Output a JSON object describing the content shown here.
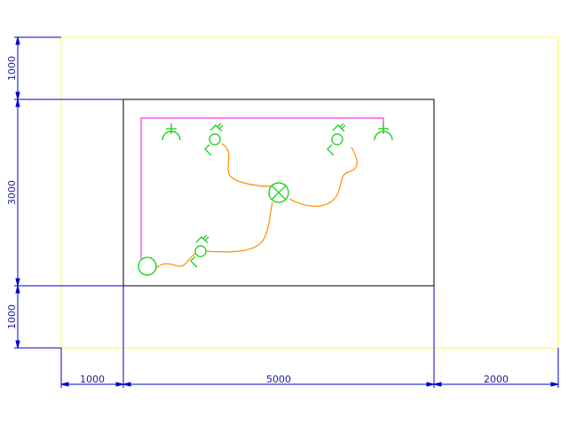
{
  "dimensions": {
    "left_top": "1000",
    "left_mid": "3000",
    "left_bottom": "1000",
    "bottom_left": "1000",
    "bottom_mid": "5000",
    "bottom_right": "2000"
  },
  "colors": {
    "background": "#ffffff",
    "outer_boundary": "#ffff33",
    "room_wall": "#000000",
    "dimension": "#0000cc",
    "socket_line": "#ff33ff",
    "wiring": "#ff8c00",
    "symbols": "#00cc00"
  },
  "symbols": [
    {
      "id": "socket-left",
      "icon": "socket-icon"
    },
    {
      "id": "socket-right",
      "icon": "socket-icon"
    },
    {
      "id": "switch-top-left",
      "icon": "switch-icon"
    },
    {
      "id": "switch-top-right",
      "icon": "switch-icon"
    },
    {
      "id": "switch-bottom",
      "icon": "switch-icon"
    },
    {
      "id": "ceiling-light",
      "icon": "ceiling-light-icon"
    },
    {
      "id": "junction-circle",
      "icon": "circle-fixture-icon"
    }
  ]
}
